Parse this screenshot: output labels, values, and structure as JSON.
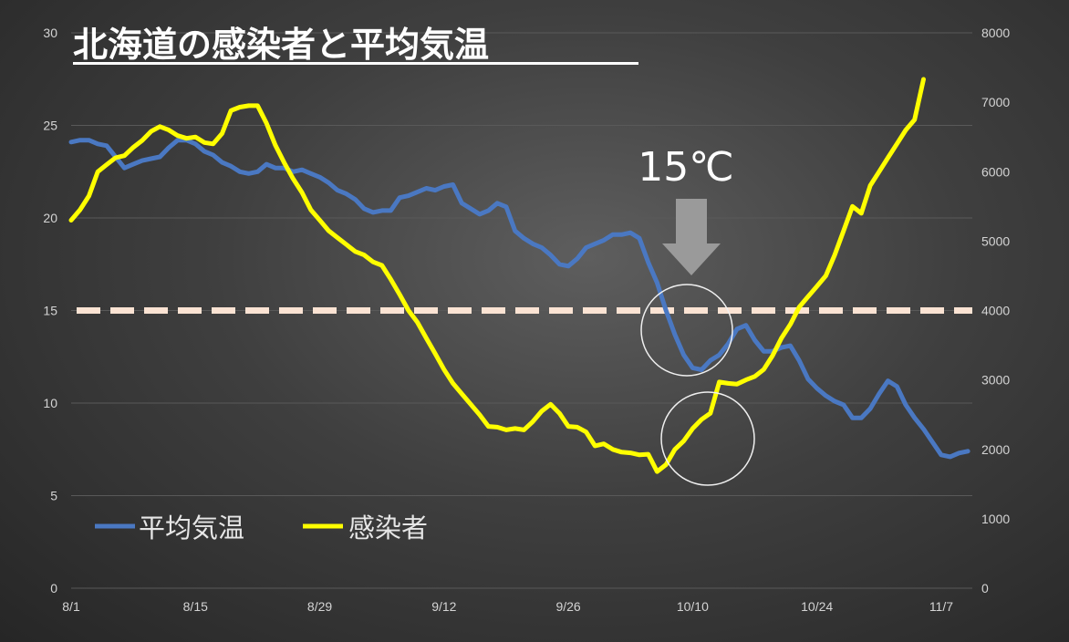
{
  "chart_data": {
    "type": "line",
    "title": "北海道の感染者と平均気温",
    "x_ticks": [
      "8/1",
      "8/15",
      "8/29",
      "9/12",
      "9/26",
      "10/10",
      "10/24",
      "11/7"
    ],
    "x_range": [
      "8/1",
      "11/10"
    ],
    "y_left": {
      "ticks": [
        "0",
        "5",
        "10",
        "15",
        "20",
        "25",
        "30"
      ],
      "min": 0,
      "max": 30
    },
    "y_right": {
      "ticks": [
        "0",
        "1000",
        "2000",
        "3000",
        "4000",
        "5000",
        "6000",
        "7000",
        "8000"
      ],
      "min": 0,
      "max": 8000
    },
    "reference_line": {
      "axis": "left",
      "value": 15,
      "color": "#fbe3d3",
      "style": "dashed"
    },
    "annotation": {
      "text": "15℃",
      "arrow": "down",
      "circles": 2
    },
    "legend": {
      "placement": "bottom-left"
    },
    "grid": true,
    "series": [
      {
        "name": "平均気温",
        "axis": "left",
        "color": "#4a78c2",
        "points": [
          [
            0,
            24.1
          ],
          [
            1,
            24.2
          ],
          [
            2,
            24.2
          ],
          [
            3,
            24.0
          ],
          [
            4,
            23.9
          ],
          [
            5,
            23.3
          ],
          [
            6,
            22.7
          ],
          [
            7,
            22.9
          ],
          [
            8,
            23.1
          ],
          [
            9,
            23.2
          ],
          [
            10,
            23.3
          ],
          [
            11,
            23.8
          ],
          [
            12,
            24.2
          ],
          [
            13,
            24.2
          ],
          [
            14,
            24.0
          ],
          [
            15,
            23.6
          ],
          [
            16,
            23.4
          ],
          [
            17,
            23.0
          ],
          [
            18,
            22.8
          ],
          [
            19,
            22.5
          ],
          [
            20,
            22.4
          ],
          [
            21,
            22.5
          ],
          [
            22,
            22.9
          ],
          [
            23,
            22.7
          ],
          [
            24,
            22.7
          ],
          [
            25,
            22.5
          ],
          [
            26,
            22.6
          ],
          [
            27,
            22.4
          ],
          [
            28,
            22.2
          ],
          [
            29,
            21.9
          ],
          [
            30,
            21.5
          ],
          [
            31,
            21.3
          ],
          [
            32,
            21.0
          ],
          [
            33,
            20.5
          ],
          [
            34,
            20.3
          ],
          [
            35,
            20.4
          ],
          [
            36,
            20.4
          ],
          [
            37,
            21.1
          ],
          [
            38,
            21.2
          ],
          [
            39,
            21.4
          ],
          [
            40,
            21.6
          ],
          [
            41,
            21.5
          ],
          [
            42,
            21.7
          ],
          [
            43,
            21.8
          ],
          [
            44,
            20.8
          ],
          [
            45,
            20.5
          ],
          [
            46,
            20.2
          ],
          [
            47,
            20.4
          ],
          [
            48,
            20.8
          ],
          [
            49,
            20.6
          ],
          [
            50,
            19.3
          ],
          [
            51,
            18.9
          ],
          [
            52,
            18.6
          ],
          [
            53,
            18.4
          ],
          [
            54,
            18.0
          ],
          [
            55,
            17.5
          ],
          [
            56,
            17.4
          ],
          [
            57,
            17.8
          ],
          [
            58,
            18.4
          ],
          [
            59,
            18.6
          ],
          [
            60,
            18.8
          ],
          [
            61,
            19.1
          ],
          [
            62,
            19.1
          ],
          [
            63,
            19.2
          ],
          [
            64,
            18.9
          ],
          [
            65,
            17.6
          ],
          [
            66,
            16.5
          ],
          [
            67,
            15.0
          ],
          [
            68,
            13.7
          ],
          [
            69,
            12.6
          ],
          [
            70,
            11.9
          ],
          [
            71,
            11.8
          ],
          [
            72,
            12.3
          ],
          [
            73,
            12.6
          ],
          [
            74,
            13.2
          ],
          [
            75,
            14.0
          ],
          [
            76,
            14.2
          ],
          [
            77,
            13.4
          ],
          [
            78,
            12.8
          ],
          [
            79,
            12.8
          ],
          [
            80,
            13.0
          ],
          [
            81,
            13.1
          ],
          [
            82,
            12.3
          ],
          [
            83,
            11.3
          ],
          [
            84,
            10.8
          ],
          [
            85,
            10.4
          ],
          [
            86,
            10.1
          ],
          [
            87,
            9.9
          ],
          [
            88,
            9.2
          ],
          [
            89,
            9.2
          ],
          [
            90,
            9.7
          ],
          [
            91,
            10.5
          ],
          [
            92,
            11.2
          ],
          [
            93,
            10.9
          ],
          [
            94,
            9.9
          ],
          [
            95,
            9.2
          ],
          [
            96,
            8.6
          ],
          [
            97,
            7.9
          ],
          [
            98,
            7.2
          ],
          [
            99,
            7.1
          ],
          [
            100,
            7.3
          ],
          [
            101,
            7.4
          ]
        ]
      },
      {
        "name": "感染者",
        "axis": "right",
        "color": "#ffff00",
        "points": [
          [
            0,
            5300
          ],
          [
            1,
            5450
          ],
          [
            2,
            5650
          ],
          [
            3,
            6000
          ],
          [
            4,
            6100
          ],
          [
            5,
            6200
          ],
          [
            6,
            6230
          ],
          [
            7,
            6350
          ],
          [
            8,
            6450
          ],
          [
            9,
            6580
          ],
          [
            10,
            6650
          ],
          [
            11,
            6600
          ],
          [
            12,
            6520
          ],
          [
            13,
            6480
          ],
          [
            14,
            6500
          ],
          [
            15,
            6420
          ],
          [
            16,
            6400
          ],
          [
            17,
            6550
          ],
          [
            18,
            6880
          ],
          [
            19,
            6930
          ],
          [
            20,
            6950
          ],
          [
            21,
            6950
          ],
          [
            22,
            6700
          ],
          [
            23,
            6380
          ],
          [
            24,
            6130
          ],
          [
            25,
            5900
          ],
          [
            26,
            5700
          ],
          [
            27,
            5450
          ],
          [
            28,
            5300
          ],
          [
            29,
            5150
          ],
          [
            30,
            5050
          ],
          [
            31,
            4950
          ],
          [
            32,
            4850
          ],
          [
            33,
            4800
          ],
          [
            34,
            4700
          ],
          [
            35,
            4650
          ],
          [
            36,
            4450
          ],
          [
            37,
            4230
          ],
          [
            38,
            4000
          ],
          [
            39,
            3830
          ],
          [
            40,
            3600
          ],
          [
            41,
            3380
          ],
          [
            42,
            3150
          ],
          [
            43,
            2950
          ],
          [
            44,
            2800
          ],
          [
            45,
            2650
          ],
          [
            46,
            2500
          ],
          [
            47,
            2330
          ],
          [
            48,
            2320
          ],
          [
            49,
            2280
          ],
          [
            50,
            2300
          ],
          [
            51,
            2280
          ],
          [
            52,
            2400
          ],
          [
            53,
            2550
          ],
          [
            54,
            2650
          ],
          [
            55,
            2520
          ],
          [
            56,
            2330
          ],
          [
            57,
            2320
          ],
          [
            58,
            2250
          ],
          [
            59,
            2050
          ],
          [
            60,
            2080
          ],
          [
            61,
            2000
          ],
          [
            62,
            1960
          ],
          [
            63,
            1950
          ],
          [
            64,
            1920
          ],
          [
            65,
            1930
          ],
          [
            66,
            1680
          ],
          [
            67,
            1780
          ],
          [
            68,
            2000
          ],
          [
            69,
            2120
          ],
          [
            70,
            2300
          ],
          [
            71,
            2430
          ],
          [
            72,
            2520
          ],
          [
            73,
            2970
          ],
          [
            74,
            2950
          ],
          [
            75,
            2940
          ],
          [
            76,
            3000
          ],
          [
            77,
            3050
          ],
          [
            78,
            3150
          ],
          [
            79,
            3350
          ],
          [
            80,
            3600
          ],
          [
            81,
            3800
          ],
          [
            82,
            4050
          ],
          [
            83,
            4200
          ],
          [
            84,
            4350
          ],
          [
            85,
            4500
          ],
          [
            86,
            4800
          ],
          [
            87,
            5150
          ],
          [
            88,
            5500
          ],
          [
            89,
            5400
          ],
          [
            90,
            5800
          ],
          [
            91,
            6000
          ],
          [
            92,
            6200
          ],
          [
            93,
            6400
          ],
          [
            94,
            6600
          ],
          [
            95,
            6750
          ],
          [
            96,
            7330
          ]
        ]
      }
    ]
  }
}
